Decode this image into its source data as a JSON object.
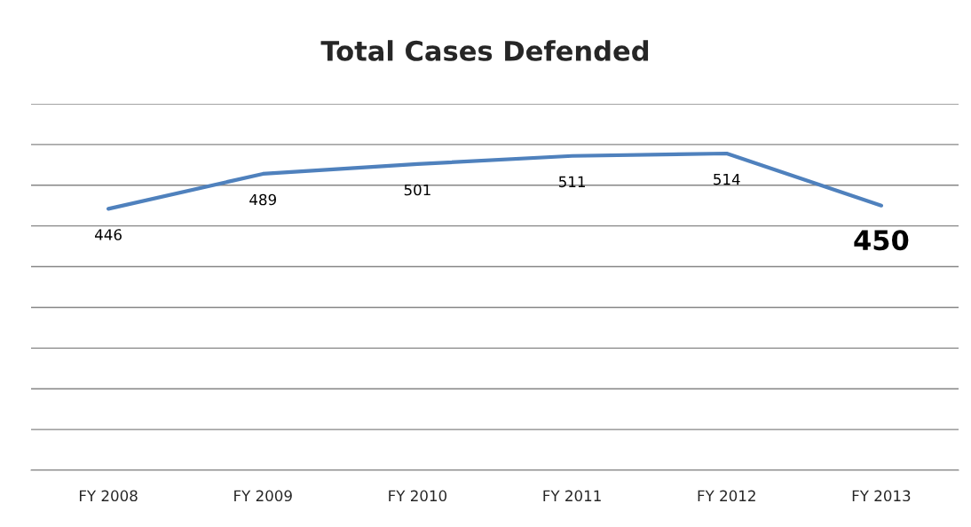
{
  "chart_data": {
    "type": "line",
    "title": "Total Cases Defended",
    "categories": [
      "FY 2008",
      "FY 2009",
      "FY 2010",
      "FY 2011",
      "FY 2012",
      "FY 2013"
    ],
    "series": [
      {
        "color": "#4f81bd",
        "values": [
          446,
          489,
          501,
          511,
          514,
          450
        ]
      }
    ],
    "ylim": [
      125,
      575
    ],
    "yticks": [
      {
        "value": 125,
        "label": null
      },
      {
        "value": 175,
        "label": null
      },
      {
        "value": 225,
        "label": null
      },
      {
        "value": 275,
        "label": null
      },
      {
        "value": 325,
        "label": null
      },
      {
        "value": 375,
        "label": null
      },
      {
        "value": 425,
        "label": null
      },
      {
        "value": 475,
        "label": null
      },
      {
        "value": 525,
        "label": null
      },
      {
        "value": 575,
        "label": null
      }
    ],
    "grid": "y",
    "data_labels": true,
    "marker": "none",
    "line_style": "solid"
  }
}
